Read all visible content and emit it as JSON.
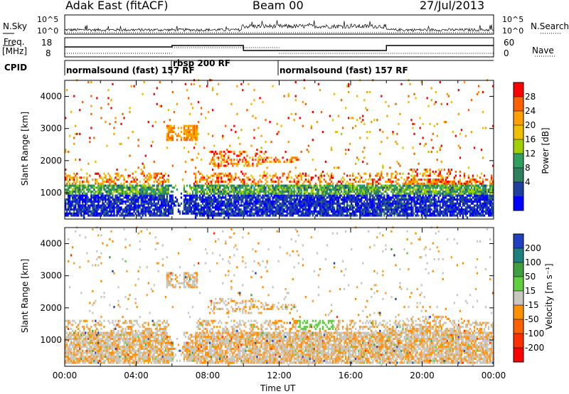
{
  "header": {
    "title_left": "Adak East (fitACF)",
    "title_center": "Beam 00",
    "title_right": "27/Jul/2013"
  },
  "strip": {
    "nsky_label": "N.Sky",
    "nsky_ticks": [
      "10^5",
      "10^0"
    ],
    "nsearch_label": "N.Search",
    "nsearch_ticks": [
      "10^5",
      "10^0"
    ],
    "freq_label": "Freq.",
    "freq_unit": "[MHz]",
    "freq_ticks": [
      "18",
      "8"
    ],
    "nave_label": "Nave",
    "nave_ticks": [
      "60",
      "0"
    ],
    "cpid_label": "CPID",
    "cpid_segments": [
      "normalsound (fast) 157 RF",
      "rbsp 200 RF",
      "normalsound (fast) 157 RF"
    ]
  },
  "chart_data": [
    {
      "type": "heatmap",
      "panel": "power",
      "ylabel": "Slant Range [km]",
      "y_ticks": [
        "4000",
        "3000",
        "2000",
        "1000"
      ],
      "ylim": [
        180,
        4500
      ],
      "colorbar_label": "Power [dB]",
      "colorbar_ticks": [
        "28",
        "24",
        "20",
        "16",
        "12",
        "8",
        "4"
      ],
      "colorbar_colors": [
        "#ff0000",
        "#ff6000",
        "#ffa000",
        "#f0c000",
        "#a0d000",
        "#30a060",
        "#308060",
        "#2040a0",
        "#0000ff"
      ],
      "value_range": [
        0,
        30
      ]
    },
    {
      "type": "heatmap",
      "panel": "velocity",
      "ylabel": "Slant Range [km]",
      "y_ticks": [
        "4000",
        "3000",
        "2000",
        "1000"
      ],
      "ylim": [
        180,
        4500
      ],
      "colorbar_label": "Velocity [m s⁻¹]",
      "colorbar_ticks": [
        "200",
        "100",
        "50",
        "15",
        "-15",
        "-50",
        "-100",
        "-200"
      ],
      "colorbar_colors": [
        "#2040c0",
        "#208080",
        "#40a040",
        "#60d040",
        "#c8c8c0",
        "#ff9000",
        "#ff6000",
        "#ff3000",
        "#ff0000"
      ],
      "value_range": [
        -250,
        250
      ]
    }
  ],
  "x_axis": {
    "xlabel": "Time UT",
    "ticks": [
      "00:00",
      "04:00",
      "08:00",
      "12:00",
      "16:00",
      "20:00",
      "00:00"
    ]
  }
}
